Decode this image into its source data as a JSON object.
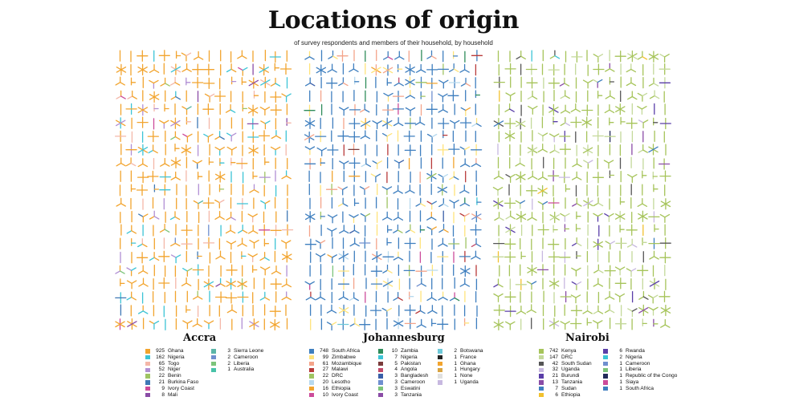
{
  "title": "Locations of origin",
  "subtitle": "of survey respondents and members of their household, by household",
  "colors": {
    "glyph_default": "#f2a42e"
  },
  "chart_data": {
    "type": "glyph_grid",
    "title": "Locations of origin",
    "subtitle": "of survey respondents and members of their household, by household",
    "panels": [
      {
        "city": "Accra",
        "legend": [
          {
            "count": "925",
            "origin": "Ghana",
            "color": "#f2a42e"
          },
          {
            "count": "162",
            "origin": "Nigeria",
            "color": "#3cc4d6"
          },
          {
            "count": "65",
            "origin": "Togo",
            "color": "#f4b7a8"
          },
          {
            "count": "52",
            "origin": "Niger",
            "color": "#b18fd4"
          },
          {
            "count": "22",
            "origin": "Benin",
            "color": "#9fc463"
          },
          {
            "count": "21",
            "origin": "Burkina Faso",
            "color": "#3e78b5"
          },
          {
            "count": "9",
            "origin": "Ivory Coast",
            "color": "#cc4b9a"
          },
          {
            "count": "8",
            "origin": "Mali",
            "color": "#8a4ca6"
          },
          {
            "count": "3",
            "origin": "Sierra Leone",
            "color": "#5bb5a8"
          },
          {
            "count": "2",
            "origin": "Cameroon",
            "color": "#6f8fcf"
          },
          {
            "count": "2",
            "origin": "Liberia",
            "color": "#7cc47a"
          },
          {
            "count": "1",
            "origin": "Australia",
            "color": "#48c2a8"
          }
        ]
      },
      {
        "city": "Johannesburg",
        "legend": [
          {
            "count": "748",
            "origin": "South Africa",
            "color": "#3f7fbf"
          },
          {
            "count": "99",
            "origin": "Zimbabwe",
            "color": "#ffe37a"
          },
          {
            "count": "61",
            "origin": "Mozambique",
            "color": "#f4a48a"
          },
          {
            "count": "27",
            "origin": "Malawi",
            "color": "#b83a3a"
          },
          {
            "count": "22",
            "origin": "DRC",
            "color": "#9fc463"
          },
          {
            "count": "20",
            "origin": "Lesotho",
            "color": "#b7d9ee"
          },
          {
            "count": "16",
            "origin": "Ethiopia",
            "color": "#f2a42e"
          },
          {
            "count": "10",
            "origin": "Ivory Coast",
            "color": "#cc4b9a"
          },
          {
            "count": "10",
            "origin": "Zambia",
            "color": "#2f8c5a"
          },
          {
            "count": "7",
            "origin": "Nigeria",
            "color": "#3cc4d6"
          },
          {
            "count": "5",
            "origin": "Pakistan",
            "color": "#7a3b3b"
          },
          {
            "count": "4",
            "origin": "Angola",
            "color": "#c24a6a"
          },
          {
            "count": "3",
            "origin": "Bangladesh",
            "color": "#3a5fa8"
          },
          {
            "count": "3",
            "origin": "Cameroon",
            "color": "#6f8fcf"
          },
          {
            "count": "3",
            "origin": "Eswatini",
            "color": "#7cc47a"
          },
          {
            "count": "3",
            "origin": "Tanzania",
            "color": "#8a4ca6"
          },
          {
            "count": "2",
            "origin": "Botswana",
            "color": "#6cc8d8"
          },
          {
            "count": "1",
            "origin": "France",
            "color": "#222222"
          },
          {
            "count": "1",
            "origin": "Ghana",
            "color": "#f2a42e"
          },
          {
            "count": "1",
            "origin": "Hungary",
            "color": "#d9a441"
          },
          {
            "count": "1",
            "origin": "None",
            "color": "#e0e0e0"
          },
          {
            "count": "1",
            "origin": "Uganda",
            "color": "#c7b8e0"
          }
        ]
      },
      {
        "city": "Nairobi",
        "legend": [
          {
            "count": "742",
            "origin": "Kenya",
            "color": "#a6c45a"
          },
          {
            "count": "147",
            "origin": "DRC",
            "color": "#c4d99a"
          },
          {
            "count": "42",
            "origin": "South Sudan",
            "color": "#555555"
          },
          {
            "count": "32",
            "origin": "Uganda",
            "color": "#c7b8e0"
          },
          {
            "count": "21",
            "origin": "Burundi",
            "color": "#5a3ea8"
          },
          {
            "count": "13",
            "origin": "Tanzania",
            "color": "#8a4ca6"
          },
          {
            "count": "7",
            "origin": "Sudan",
            "color": "#3f7fbf"
          },
          {
            "count": "6",
            "origin": "Ethiopia",
            "color": "#f2c12e"
          },
          {
            "count": "6",
            "origin": "Rwanda",
            "color": "#5a3ea8"
          },
          {
            "count": "2",
            "origin": "Nigeria",
            "color": "#3cc4d6"
          },
          {
            "count": "1",
            "origin": "Cameroon",
            "color": "#6f8fcf"
          },
          {
            "count": "1",
            "origin": "Liberia",
            "color": "#7cc47a"
          },
          {
            "count": "1",
            "origin": "Republic of the Congo",
            "color": "#222a5a"
          },
          {
            "count": "1",
            "origin": "Siaya",
            "color": "#cc4b9a"
          },
          {
            "count": "1",
            "origin": "South Africa",
            "color": "#3f7fbf"
          }
        ]
      }
    ]
  }
}
